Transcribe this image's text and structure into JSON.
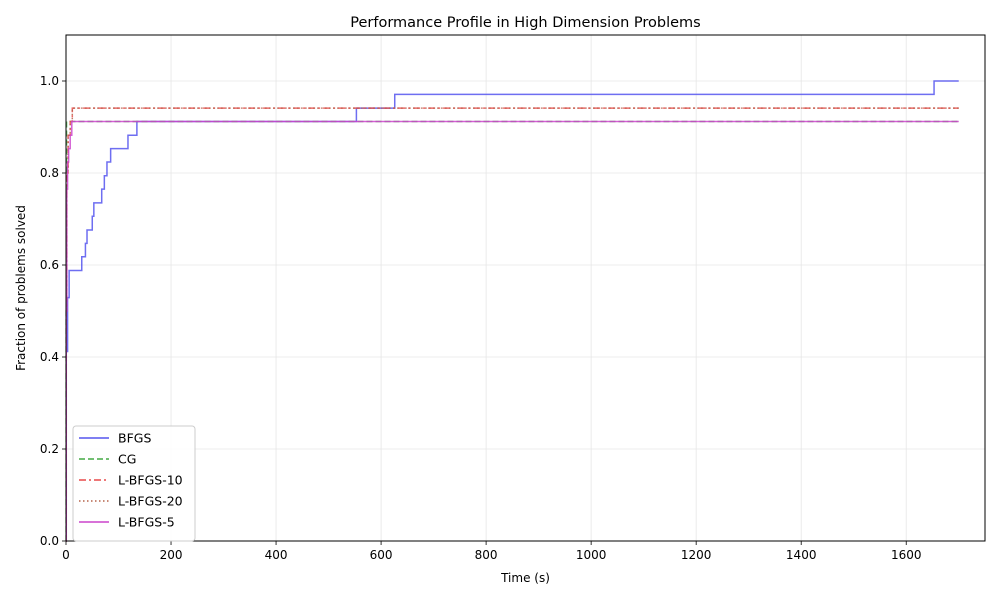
{
  "chart_data": {
    "type": "line",
    "title": "Performance Profile in High Dimension Problems",
    "xlabel": "Time (s)",
    "ylabel": "Fraction of problems solved",
    "xlim": [
      0,
      1750
    ],
    "ylim": [
      0,
      1.1
    ],
    "xticks": [
      0,
      200,
      400,
      600,
      800,
      1000,
      1200,
      1400,
      1600
    ],
    "yticks": [
      0.0,
      0.2,
      0.4,
      0.6,
      0.8,
      1.0
    ],
    "xtick_labels": [
      "0",
      "200",
      "400",
      "600",
      "800",
      "1000",
      "1200",
      "1400",
      "1600"
    ],
    "ytick_labels": [
      "0.0",
      "0.2",
      "0.4",
      "0.6",
      "0.8",
      "1.0"
    ],
    "grid": true,
    "legend_position": "bottom-left",
    "series": [
      {
        "name": "BFGS",
        "color": "#5555ee",
        "dash": "solid",
        "step": true,
        "points": [
          [
            0,
            0.0
          ],
          [
            0.5,
            0.412
          ],
          [
            3,
            0.529
          ],
          [
            6,
            0.588
          ],
          [
            30,
            0.618
          ],
          [
            37,
            0.647
          ],
          [
            40,
            0.676
          ],
          [
            50,
            0.706
          ],
          [
            53,
            0.735
          ],
          [
            68,
            0.765
          ],
          [
            73,
            0.794
          ],
          [
            78,
            0.824
          ],
          [
            85,
            0.853
          ],
          [
            118,
            0.882
          ],
          [
            135,
            0.912
          ],
          [
            553,
            0.941
          ],
          [
            626,
            0.971
          ],
          [
            1653,
            1.0
          ],
          [
            1700,
            1.0
          ]
        ]
      },
      {
        "name": "CG",
        "color": "#44aa44",
        "dash": "dashed",
        "step": true,
        "points": [
          [
            0,
            0.0
          ],
          [
            0.3,
            0.5
          ],
          [
            0.6,
            0.8
          ],
          [
            1,
            0.912
          ],
          [
            1700,
            0.912
          ]
        ]
      },
      {
        "name": "L-BFGS-10",
        "color": "#e84a4a",
        "dash": "dashdot",
        "step": true,
        "points": [
          [
            0,
            0.0
          ],
          [
            0.5,
            0.5
          ],
          [
            1.5,
            0.8
          ],
          [
            4,
            0.882
          ],
          [
            8,
            0.912
          ],
          [
            12,
            0.941
          ],
          [
            1700,
            0.941
          ]
        ]
      },
      {
        "name": "L-BFGS-20",
        "color": "#b5634a",
        "dash": "dotted",
        "step": true,
        "points": [
          [
            0,
            0.0
          ],
          [
            0.5,
            0.5
          ],
          [
            1.5,
            0.8
          ],
          [
            4,
            0.882
          ],
          [
            8,
            0.912
          ],
          [
            12,
            0.941
          ],
          [
            1700,
            0.941
          ]
        ]
      },
      {
        "name": "L-BFGS-5",
        "color": "#cc44cc",
        "dash": "solid",
        "step": true,
        "points": [
          [
            0,
            0.0
          ],
          [
            0.5,
            0.5
          ],
          [
            1.5,
            0.765
          ],
          [
            3,
            0.824
          ],
          [
            5,
            0.853
          ],
          [
            8,
            0.882
          ],
          [
            11,
            0.912
          ],
          [
            1700,
            0.912
          ]
        ]
      }
    ]
  }
}
